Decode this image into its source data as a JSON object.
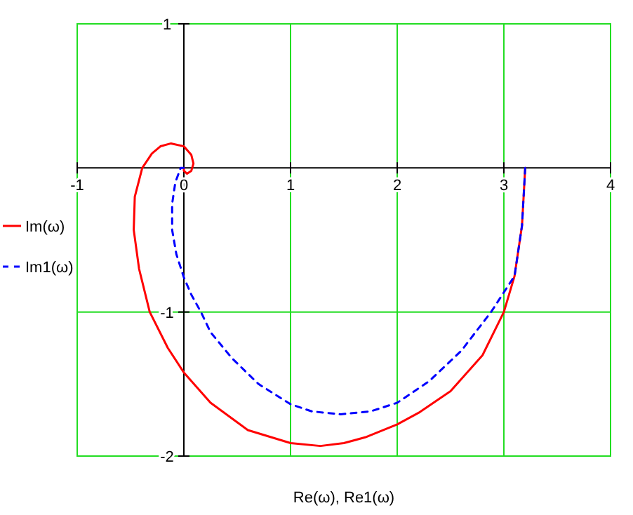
{
  "chart_data": {
    "type": "line",
    "xlabel": "Re(ω), Re1(ω)",
    "xlim": [
      -1,
      4
    ],
    "ylim": [
      -2,
      1
    ],
    "xticks": [
      -1,
      0,
      1,
      2,
      3,
      4
    ],
    "yticks": [
      -2,
      -1,
      1
    ],
    "grid": true,
    "legend": "left",
    "series": [
      {
        "name": "Im(ω)",
        "color": "#ff0000",
        "line_style": "solid",
        "x": [
          3.2,
          3.17,
          3.1,
          3.0,
          2.8,
          2.5,
          2.2,
          2.0,
          1.7,
          1.5,
          1.28,
          1.0,
          0.6,
          0.25,
          0.0,
          -0.15,
          -0.32,
          -0.42,
          -0.47,
          -0.46,
          -0.39,
          -0.3,
          -0.22,
          -0.12,
          0.0,
          0.07,
          0.09,
          0.07,
          0.03,
          0.0,
          0.0
        ],
        "values": [
          0,
          -0.4,
          -0.75,
          -1.0,
          -1.3,
          -1.55,
          -1.7,
          -1.78,
          -1.87,
          -1.91,
          -1.93,
          -1.91,
          -1.82,
          -1.63,
          -1.42,
          -1.25,
          -1.0,
          -0.7,
          -0.43,
          -0.2,
          0,
          0.1,
          0.15,
          0.17,
          0.15,
          0.09,
          0.03,
          -0.02,
          -0.04,
          -0.02,
          0
        ]
      },
      {
        "name": "Im1(ω)",
        "color": "#0000ff",
        "line_style": "dashed",
        "x": [
          3.2,
          3.17,
          3.1,
          2.88,
          2.6,
          2.3,
          2.0,
          1.75,
          1.47,
          1.2,
          1.0,
          0.7,
          0.45,
          0.25,
          0.16,
          0.07,
          0.0,
          -0.07,
          -0.11,
          -0.11,
          -0.08,
          -0.03,
          0.0
        ],
        "values": [
          0,
          -0.4,
          -0.75,
          -1.0,
          -1.27,
          -1.48,
          -1.63,
          -1.69,
          -1.71,
          -1.69,
          -1.64,
          -1.5,
          -1.32,
          -1.14,
          -1.0,
          -0.88,
          -0.76,
          -0.6,
          -0.43,
          -0.25,
          -0.1,
          0,
          0
        ]
      }
    ]
  }
}
